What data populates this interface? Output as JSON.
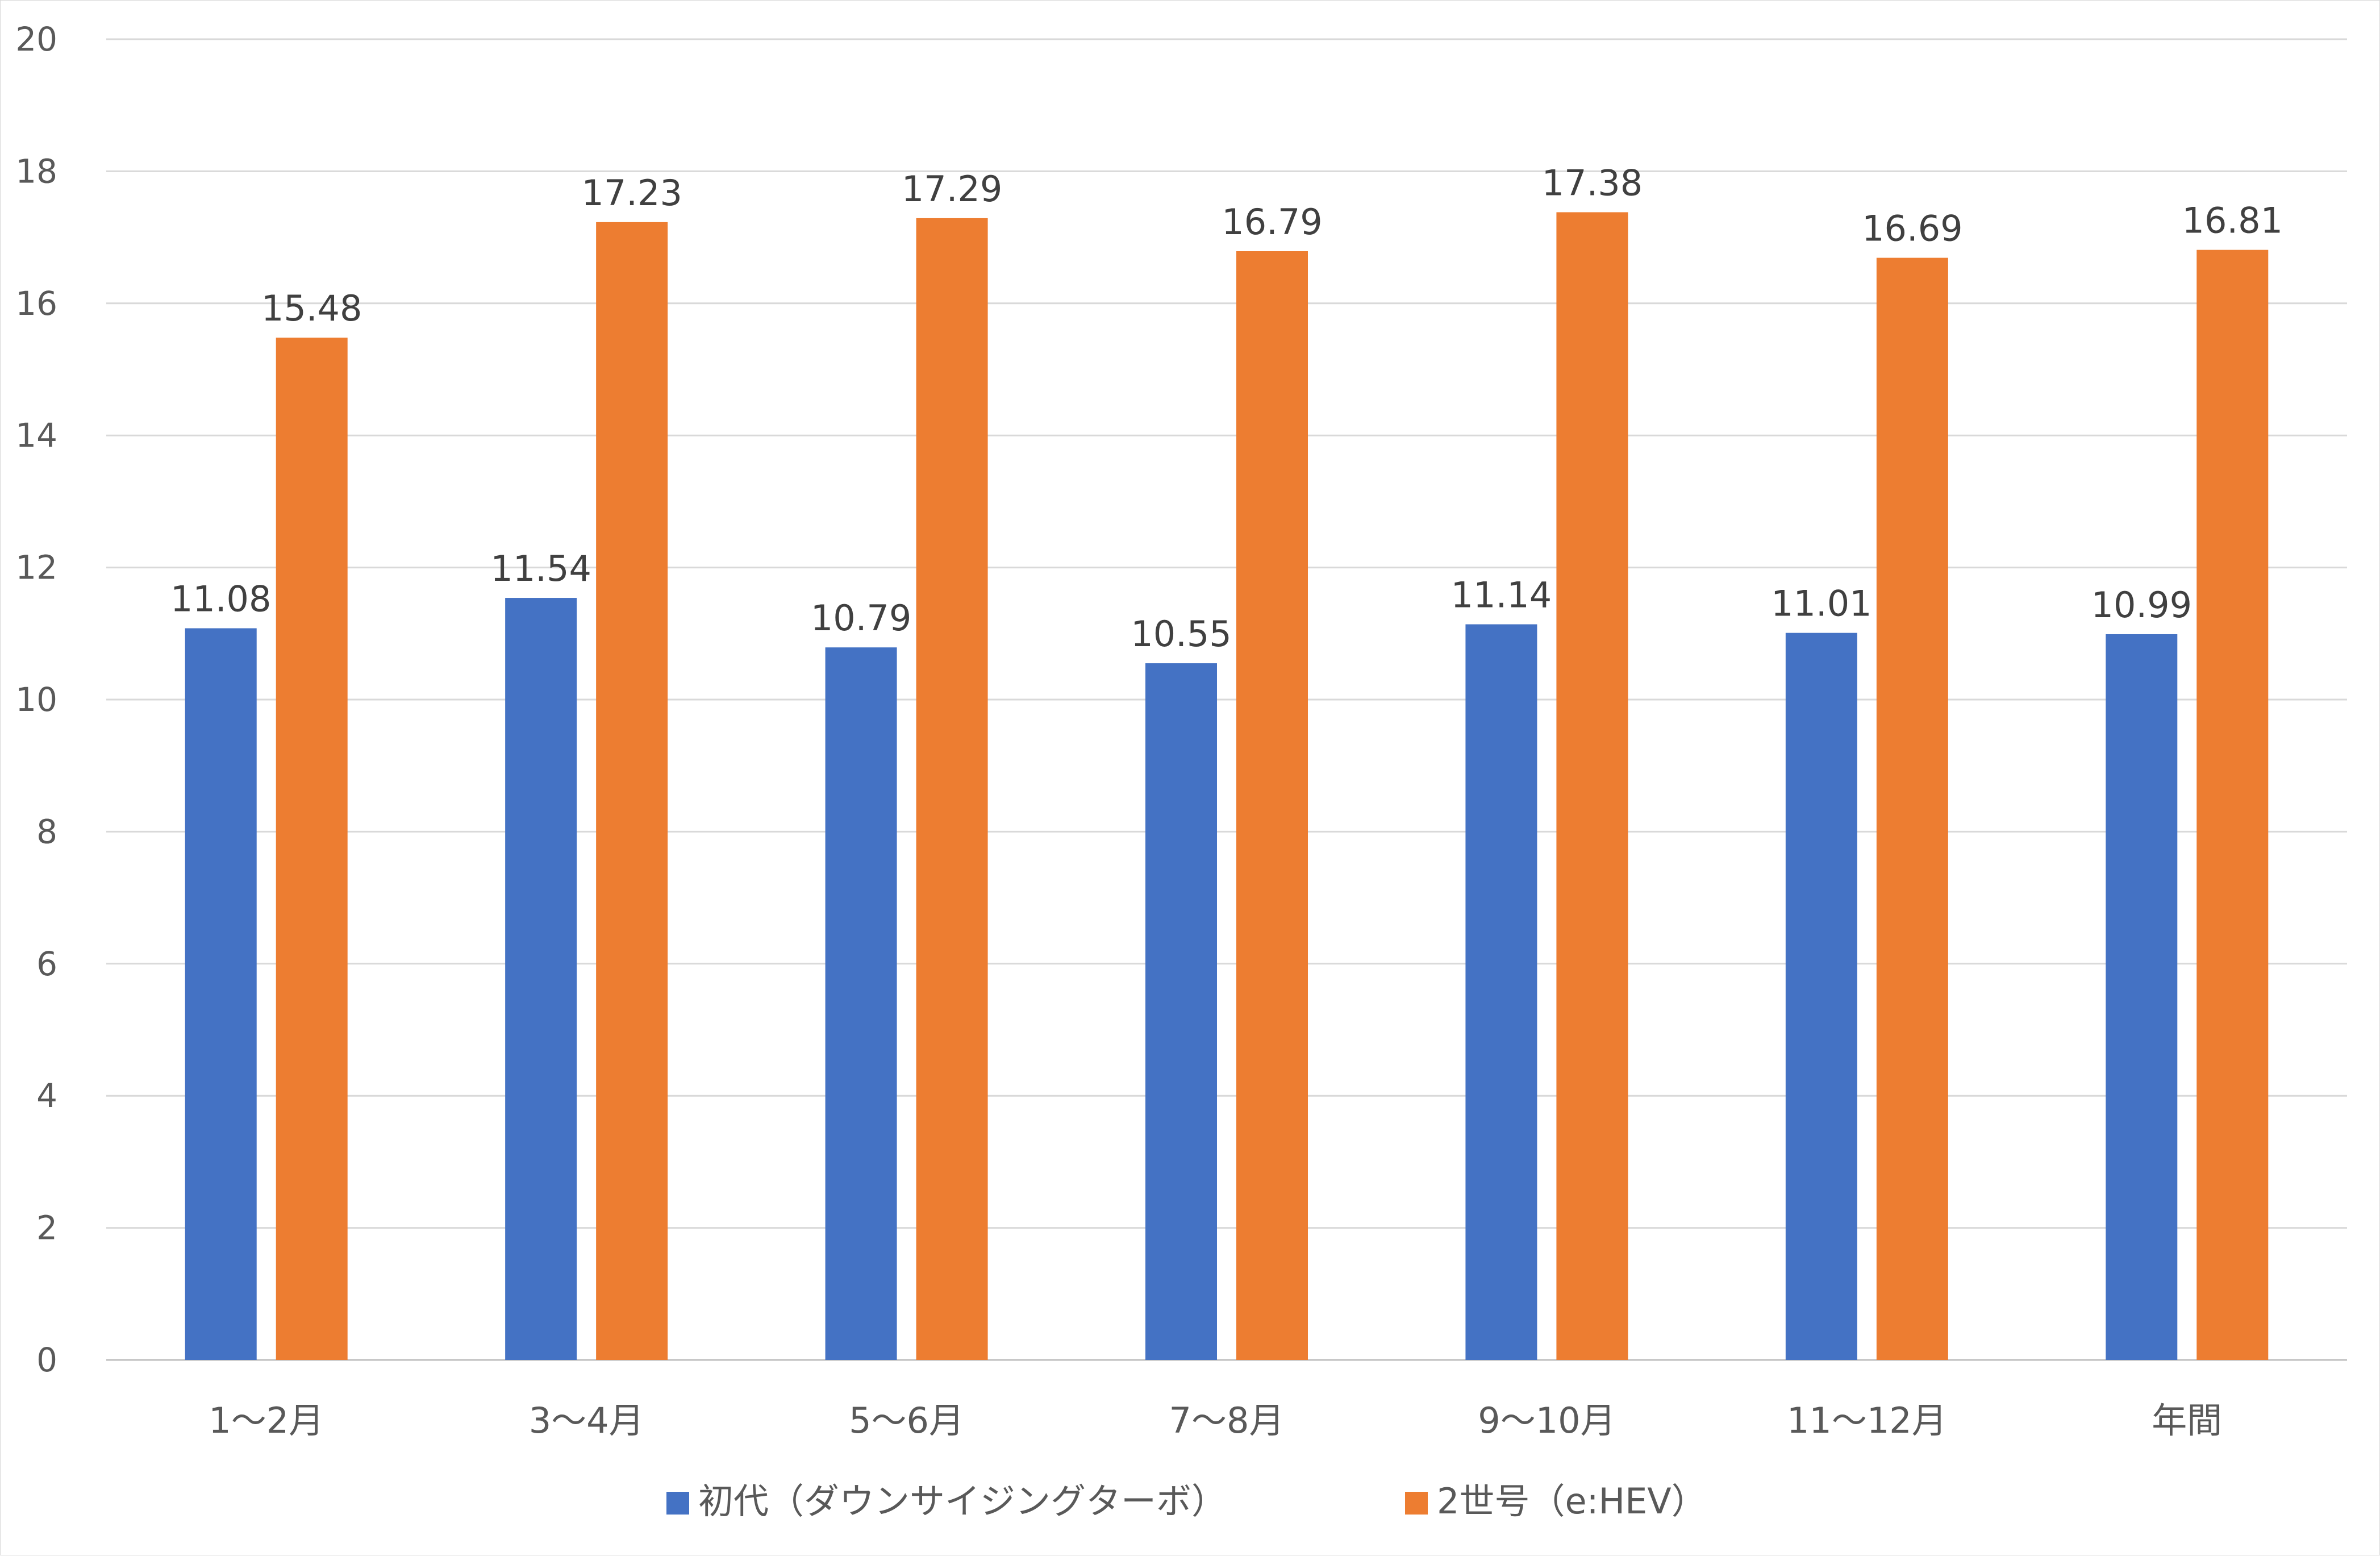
{
  "chart_data": {
    "type": "bar",
    "categories": [
      "1～2月",
      "3～4月",
      "5～6月",
      "7～8月",
      "9～10月",
      "11～12月",
      "年間"
    ],
    "series": [
      {
        "name": "初代（ダウンサイジングターボ）",
        "color": "#4472C4",
        "values": [
          11.08,
          11.54,
          10.79,
          10.55,
          11.14,
          11.01,
          10.99
        ]
      },
      {
        "name": "2世号（e:HEV）",
        "color": "#ED7D31",
        "values": [
          15.48,
          17.23,
          17.29,
          16.79,
          17.38,
          16.69,
          16.81
        ]
      }
    ],
    "ylim": [
      0,
      20
    ],
    "yticks": [
      0,
      2,
      4,
      6,
      8,
      10,
      12,
      14,
      16,
      18,
      20
    ],
    "grid": true,
    "legend_position": "bottom",
    "data_labels": true,
    "title": "",
    "xlabel": "",
    "ylabel": ""
  }
}
